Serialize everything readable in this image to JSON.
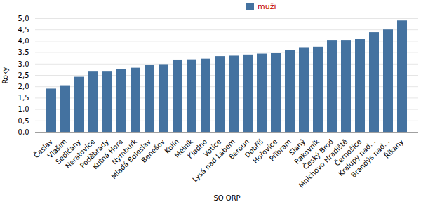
{
  "chart_data": {
    "type": "bar",
    "categories": [
      "Časlav",
      "Vlašim",
      "Sedlčany",
      "Neratovice",
      "Poděbrady",
      "Kutná Hora",
      "Nymburk",
      "Mladá Boleslav",
      "Benešov",
      "Kolín",
      "Mělník",
      "Kladno",
      "Votice",
      "Lysá nad Labem",
      "Beroun",
      "Dobříš",
      "Hořovice",
      "Příbram",
      "Slaný",
      "Rakovník",
      "Český Brod",
      "Mnichovo Hradiště",
      "Černošice",
      "Kralupy nad...",
      "Brandýs nad...",
      "Říkany"
    ],
    "series": [
      {
        "name": "muži",
        "color": "#4472a0",
        "values": [
          1.9,
          2.05,
          2.42,
          2.68,
          2.68,
          2.76,
          2.82,
          2.95,
          2.98,
          3.18,
          3.19,
          3.22,
          3.33,
          3.35,
          3.4,
          3.44,
          3.48,
          3.6,
          3.72,
          3.74,
          4.04,
          4.04,
          4.09,
          4.38,
          4.5,
          4.9
        ]
      }
    ],
    "xlabel": "SO ORP",
    "ylabel": "Roky",
    "ylim": [
      0.0,
      5.0
    ],
    "yticks": [
      {
        "value": 0.0,
        "label": "0,0"
      },
      {
        "value": 0.5,
        "label": "0,5"
      },
      {
        "value": 1.0,
        "label": "1,0"
      },
      {
        "value": 1.5,
        "label": "1,5"
      },
      {
        "value": 2.0,
        "label": "2,0"
      },
      {
        "value": 2.5,
        "label": "2,5"
      },
      {
        "value": 3.0,
        "label": "3,0"
      },
      {
        "value": 3.5,
        "label": "3,5"
      },
      {
        "value": 4.0,
        "label": "4,0"
      },
      {
        "value": 4.5,
        "label": "4,5"
      },
      {
        "value": 5.0,
        "label": "5,0"
      }
    ],
    "grid": true,
    "legend": "upper center"
  }
}
